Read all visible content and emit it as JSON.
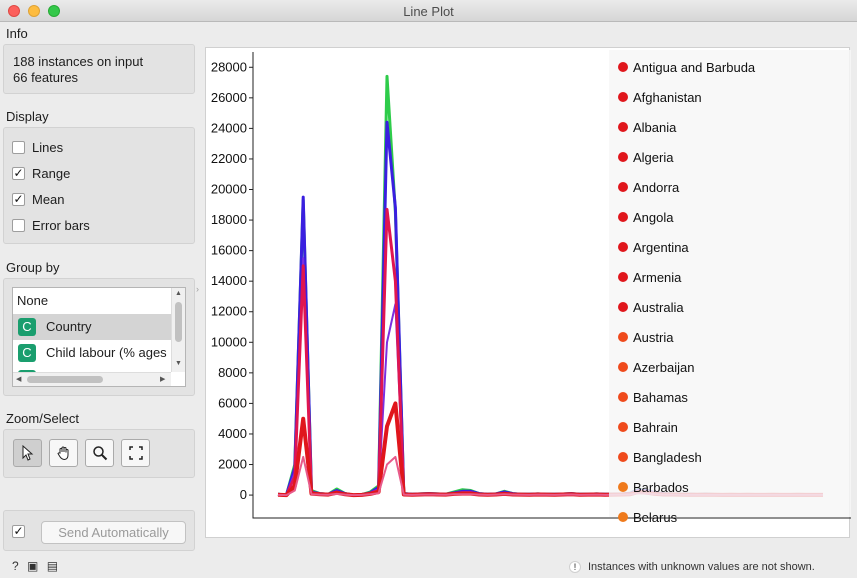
{
  "window": {
    "title": "Line Plot"
  },
  "info": {
    "label": "Info",
    "instances": "188 instances on input",
    "features": "66 features"
  },
  "display": {
    "label": "Display",
    "options": [
      {
        "label": "Lines",
        "checked": false
      },
      {
        "label": "Range",
        "checked": true
      },
      {
        "label": "Mean",
        "checked": true
      },
      {
        "label": "Error bars",
        "checked": false
      }
    ]
  },
  "group_by": {
    "label": "Group by",
    "items": [
      {
        "label": "None",
        "icon": ""
      },
      {
        "label": "Country",
        "icon": "C"
      },
      {
        "label": "Child labour  (% ages",
        "icon": "C"
      }
    ],
    "selected_index": 1
  },
  "zoom_select": {
    "label": "Zoom/Select",
    "tools": [
      "pointer-icon",
      "hand-pan-icon",
      "magnifier-zoom-icon",
      "zoom-reset-icon"
    ]
  },
  "send": {
    "label": "Send Automatically",
    "checked": true
  },
  "status": {
    "warning": "Instances with unknown values are not shown."
  },
  "legend": {
    "items": [
      {
        "label": "Antigua and Barbuda",
        "color": "#e0161c"
      },
      {
        "label": "Afghanistan",
        "color": "#e0161c"
      },
      {
        "label": "Albania",
        "color": "#e0161c"
      },
      {
        "label": "Algeria",
        "color": "#e0161c"
      },
      {
        "label": "Andorra",
        "color": "#e0161c"
      },
      {
        "label": "Angola",
        "color": "#e0161c"
      },
      {
        "label": "Argentina",
        "color": "#e0161c"
      },
      {
        "label": "Armenia",
        "color": "#e0161c"
      },
      {
        "label": "Australia",
        "color": "#e0161c"
      },
      {
        "label": "Austria",
        "color": "#ef4a1c"
      },
      {
        "label": "Azerbaijan",
        "color": "#ef4a1c"
      },
      {
        "label": "Bahamas",
        "color": "#ef4a1c"
      },
      {
        "label": "Bahrain",
        "color": "#ef4a1c"
      },
      {
        "label": "Bangladesh",
        "color": "#ef4a1c"
      },
      {
        "label": "Barbados",
        "color": "#ef7a1c"
      },
      {
        "label": "Belarus",
        "color": "#ef7a1c"
      }
    ]
  },
  "chart_data": {
    "type": "line",
    "ylim": [
      -1500,
      29000
    ],
    "yticks": [
      0,
      2000,
      4000,
      6000,
      8000,
      10000,
      12000,
      14000,
      16000,
      18000,
      20000,
      22000,
      24000,
      26000,
      28000
    ],
    "x": [
      0,
      1,
      2,
      3,
      4,
      5,
      6,
      7,
      8,
      9,
      10,
      11,
      12,
      13,
      14,
      15,
      16,
      17,
      18,
      19,
      20,
      21,
      22,
      23,
      24,
      25,
      26,
      27,
      28,
      29,
      30,
      31,
      32,
      33,
      34,
      35,
      36,
      37,
      38,
      39,
      40,
      41,
      42,
      43,
      44,
      45,
      46,
      47,
      48,
      49,
      50,
      51,
      52,
      53,
      54,
      55,
      56,
      57,
      58,
      59,
      60,
      61,
      62,
      63,
      64,
      65
    ],
    "series": [
      {
        "color": "#2ecc4a",
        "width": 3,
        "values": [
          50,
          0,
          2000,
          19300,
          300,
          100,
          50,
          400,
          100,
          0,
          30,
          200,
          600,
          27400,
          18500,
          100,
          50,
          80,
          100,
          80,
          60,
          200,
          350,
          300,
          100,
          50,
          80,
          250,
          100,
          60,
          50,
          80,
          60,
          50,
          70,
          100,
          50,
          60,
          80,
          50,
          60,
          70,
          120,
          400,
          300,
          150,
          100,
          80,
          60,
          50,
          40,
          50,
          40,
          30,
          40,
          30,
          40,
          30,
          30,
          40,
          30,
          30,
          40,
          30,
          30,
          30
        ]
      },
      {
        "color": "#3a1fe0",
        "width": 3,
        "values": [
          50,
          0,
          1800,
          19500,
          200,
          100,
          50,
          300,
          100,
          0,
          30,
          150,
          500,
          24400,
          18800,
          100,
          50,
          80,
          100,
          80,
          60,
          150,
          250,
          250,
          100,
          50,
          80,
          200,
          100,
          60,
          50,
          80,
          60,
          50,
          70,
          100,
          50,
          60,
          80,
          50,
          60,
          70,
          120,
          350,
          300,
          150,
          100,
          80,
          60,
          50,
          40,
          50,
          40,
          30,
          40,
          30,
          40,
          30,
          30,
          40,
          30,
          30,
          40,
          30,
          30,
          30
        ]
      },
      {
        "color": "#7b2fe0",
        "width": 2,
        "values": [
          40,
          0,
          1500,
          15500,
          200,
          100,
          50,
          250,
          80,
          0,
          25,
          150,
          400,
          10000,
          12500,
          80,
          40,
          60,
          80,
          60,
          50,
          120,
          200,
          200,
          80,
          40,
          60,
          150,
          80,
          50,
          40,
          60,
          50,
          40,
          60,
          80,
          40,
          50,
          60,
          40,
          50,
          60,
          100,
          300,
          250,
          120,
          80,
          60,
          50,
          40,
          30,
          40,
          30,
          25,
          30,
          25,
          30,
          25,
          25,
          30,
          25,
          25,
          30,
          25,
          25,
          25
        ]
      },
      {
        "color": "#e01650",
        "width": 3,
        "values": [
          30,
          0,
          1200,
          15000,
          150,
          80,
          40,
          200,
          60,
          0,
          20,
          120,
          300,
          18700,
          14000,
          60,
          30,
          50,
          60,
          50,
          40,
          100,
          150,
          150,
          60,
          30,
          50,
          120,
          60,
          40,
          30,
          50,
          40,
          30,
          50,
          60,
          30,
          40,
          50,
          30,
          40,
          50,
          80,
          250,
          200,
          100,
          60,
          50,
          40,
          30,
          25,
          30,
          25,
          20,
          25,
          20,
          25,
          20,
          20,
          25,
          20,
          20,
          25,
          20,
          20,
          20
        ]
      },
      {
        "color": "#e0161c",
        "width": 4,
        "values": [
          20,
          0,
          600,
          5000,
          100,
          50,
          30,
          150,
          50,
          0,
          15,
          80,
          200,
          4500,
          6000,
          40,
          20,
          40,
          50,
          40,
          30,
          80,
          100,
          100,
          40,
          20,
          40,
          80,
          40,
          30,
          20,
          40,
          30,
          20,
          40,
          50,
          20,
          30,
          40,
          20,
          30,
          40,
          60,
          200,
          150,
          80,
          40,
          40,
          30,
          20,
          20,
          20,
          20,
          15,
          20,
          15,
          20,
          15,
          15,
          20,
          15,
          15,
          20,
          15,
          15,
          15
        ]
      },
      {
        "color": "#e85a8a",
        "width": 2,
        "values": [
          15,
          0,
          300,
          2500,
          60,
          30,
          20,
          80,
          30,
          0,
          10,
          50,
          120,
          2000,
          2500,
          30,
          15,
          30,
          30,
          30,
          20,
          50,
          60,
          60,
          30,
          15,
          30,
          50,
          30,
          20,
          15,
          30,
          20,
          15,
          30,
          40,
          15,
          20,
          30,
          15,
          20,
          30,
          40,
          120,
          100,
          60,
          30,
          30,
          20,
          15,
          15,
          15,
          15,
          10,
          15,
          10,
          15,
          10,
          10,
          15,
          10,
          10,
          15,
          10,
          10,
          10
        ]
      }
    ]
  }
}
